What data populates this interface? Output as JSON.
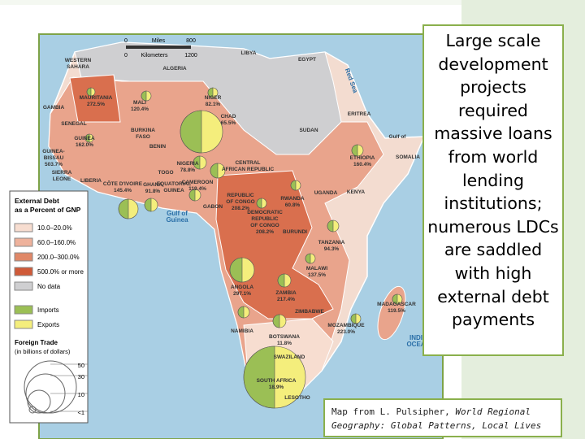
{
  "callout": "Large scale development projects required massive loans from world lending institutions; numerous LDCs are saddled with high external debt payments",
  "citation": {
    "prefix": "Map from L. Pulsipher, ",
    "source": "World Regional Geography: Global Patterns, Local Lives"
  },
  "map": {
    "scale": {
      "miles": [
        "0",
        "Miles",
        "800"
      ],
      "kilometers": [
        "0",
        "Kilometers",
        "1200"
      ]
    },
    "labels": [
      {
        "lines": [
          "WESTERN",
          "SAHARA"
        ]
      },
      {
        "lines": [
          "MAURITANIA",
          "272.5%"
        ]
      },
      {
        "lines": [
          "MALI",
          "120.4%"
        ]
      },
      {
        "lines": [
          "ALGERIA"
        ]
      },
      {
        "lines": [
          "LIBYA"
        ]
      },
      {
        "lines": [
          "EGYPT"
        ]
      },
      {
        "lines": [
          "NIGER",
          "82.1%"
        ]
      },
      {
        "lines": [
          "CHAD",
          "65.5%"
        ]
      },
      {
        "lines": [
          "SUDAN"
        ]
      },
      {
        "lines": [
          "ERITREA"
        ]
      },
      {
        "lines": [
          "Gulf of"
        ]
      },
      {
        "lines": [
          "SOMALIA"
        ]
      },
      {
        "lines": [
          "ETHIOPIA",
          "160.4%"
        ]
      },
      {
        "lines": [
          "KENYA"
        ]
      },
      {
        "lines": [
          "UGANDA"
        ]
      },
      {
        "lines": [
          "GAMBIA"
        ]
      },
      {
        "lines": [
          "SENEGAL"
        ]
      },
      {
        "lines": [
          "GUINEA",
          "162.0%"
        ]
      },
      {
        "lines": [
          "GUINEA-",
          "BISSAU",
          "503.7%"
        ]
      },
      {
        "lines": [
          "SIERRA",
          "LEONE"
        ]
      },
      {
        "lines": [
          "LIBERIA"
        ]
      },
      {
        "lines": [
          "CÔTE D'IVOIRE",
          "145.4%"
        ]
      },
      {
        "lines": [
          "BURKINA",
          "FASO"
        ]
      },
      {
        "lines": [
          "BENIN"
        ]
      },
      {
        "lines": [
          "GHANA",
          "91.8%"
        ]
      },
      {
        "lines": [
          "TOGO"
        ]
      },
      {
        "lines": [
          "NIGERIA",
          "78.8%"
        ]
      },
      {
        "lines": [
          "CAMEROON",
          "119.4%"
        ]
      },
      {
        "lines": [
          "EQUATORIAL",
          "GUINEA"
        ]
      },
      {
        "lines": [
          "CENTRAL",
          "AFRICAN REPUBLIC"
        ]
      },
      {
        "lines": [
          "GABON"
        ]
      },
      {
        "lines": [
          "REPUBLIC",
          "OF CONGO",
          "208.2%"
        ]
      },
      {
        "lines": [
          "DEMOCRATIC",
          "REPUBLIC",
          "OF CONGO",
          "208.2%"
        ]
      },
      {
        "lines": [
          "RWANDA",
          "60.8%"
        ]
      },
      {
        "lines": [
          "BURUNDI"
        ]
      },
      {
        "lines": [
          "TANZANIA",
          "94.3%"
        ]
      },
      {
        "lines": [
          "ANGOLA",
          "297.1%"
        ]
      },
      {
        "lines": [
          "ZAMBIA",
          "217.4%"
        ]
      },
      {
        "lines": [
          "MALAWI",
          "137.5%"
        ]
      },
      {
        "lines": [
          "ZIMBABWE"
        ]
      },
      {
        "lines": [
          "MOZAMBIQUE",
          "223.0%"
        ]
      },
      {
        "lines": [
          "MADAGASCAR",
          "119.5%"
        ]
      },
      {
        "lines": [
          "NAMIBIA"
        ]
      },
      {
        "lines": [
          "BOTSWANA",
          "11.8%"
        ]
      },
      {
        "lines": [
          "SWAZILAND"
        ]
      },
      {
        "lines": [
          "SOUTH AFRICA",
          "18.9%"
        ]
      },
      {
        "lines": [
          "LESOTHO"
        ]
      },
      {
        "lines": [
          "Gulf of",
          "Guinea"
        ]
      },
      {
        "lines": [
          "Red Sea"
        ]
      },
      {
        "lines": [
          "INDI",
          "OCEA"
        ]
      }
    ]
  },
  "legend": {
    "title": [
      "External Debt",
      "as a Percent of GNP"
    ],
    "debt": [
      "10.0–20.0%",
      "60.0–160.0%",
      "200.0–300.0%",
      "500.0% or more",
      "No data"
    ],
    "trade": [
      "Imports",
      "Exports"
    ],
    "trade_title": [
      "Foreign Trade",
      "(in billions of dollars)"
    ],
    "sizes": [
      "50",
      "30",
      "10",
      "<1"
    ]
  }
}
